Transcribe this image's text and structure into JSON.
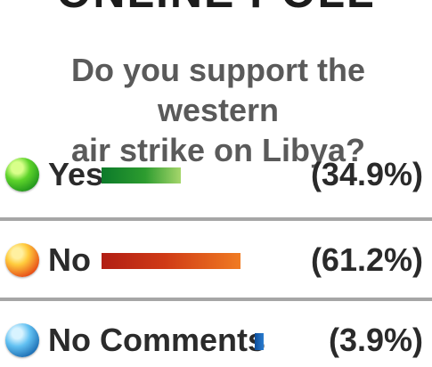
{
  "header": {
    "title": "ONLINE POLL"
  },
  "question": {
    "line1": "Do you support the western",
    "line2": "air strike on Libya?"
  },
  "chart_data": {
    "type": "bar",
    "categories": [
      "Yes",
      "No",
      "No Comments"
    ],
    "values": [
      34.9,
      61.2,
      3.9
    ],
    "value_labels": [
      "(34.9%)",
      "(61.2%)",
      "(3.9%)"
    ],
    "ylim": [
      0,
      100
    ],
    "colors": [
      "#2d9c2f",
      "#cf3a16",
      "#2b7dd0"
    ]
  }
}
